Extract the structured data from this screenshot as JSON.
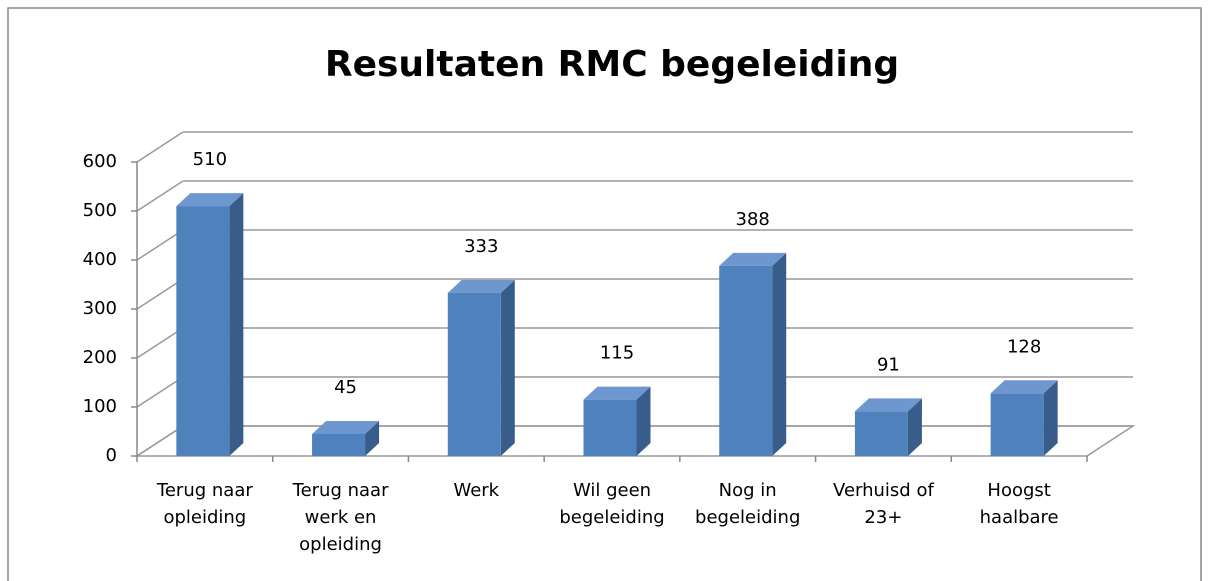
{
  "chart_data": {
    "type": "bar3d",
    "title": "Resultaten RMC begeleiding",
    "categories": [
      "Terug naar opleiding",
      "Terug naar werk en opleiding",
      "Werk",
      "Wil geen begeleiding",
      "Nog in begeleiding",
      "Verhuisd of 23+",
      "Hoogst haalbare"
    ],
    "values": [
      510,
      45,
      333,
      115,
      388,
      91,
      128
    ],
    "color": "#4f81bd",
    "ylim": [
      0,
      600
    ],
    "yticks": [
      0,
      100,
      200,
      300,
      400,
      500,
      600
    ],
    "grid": true
  }
}
